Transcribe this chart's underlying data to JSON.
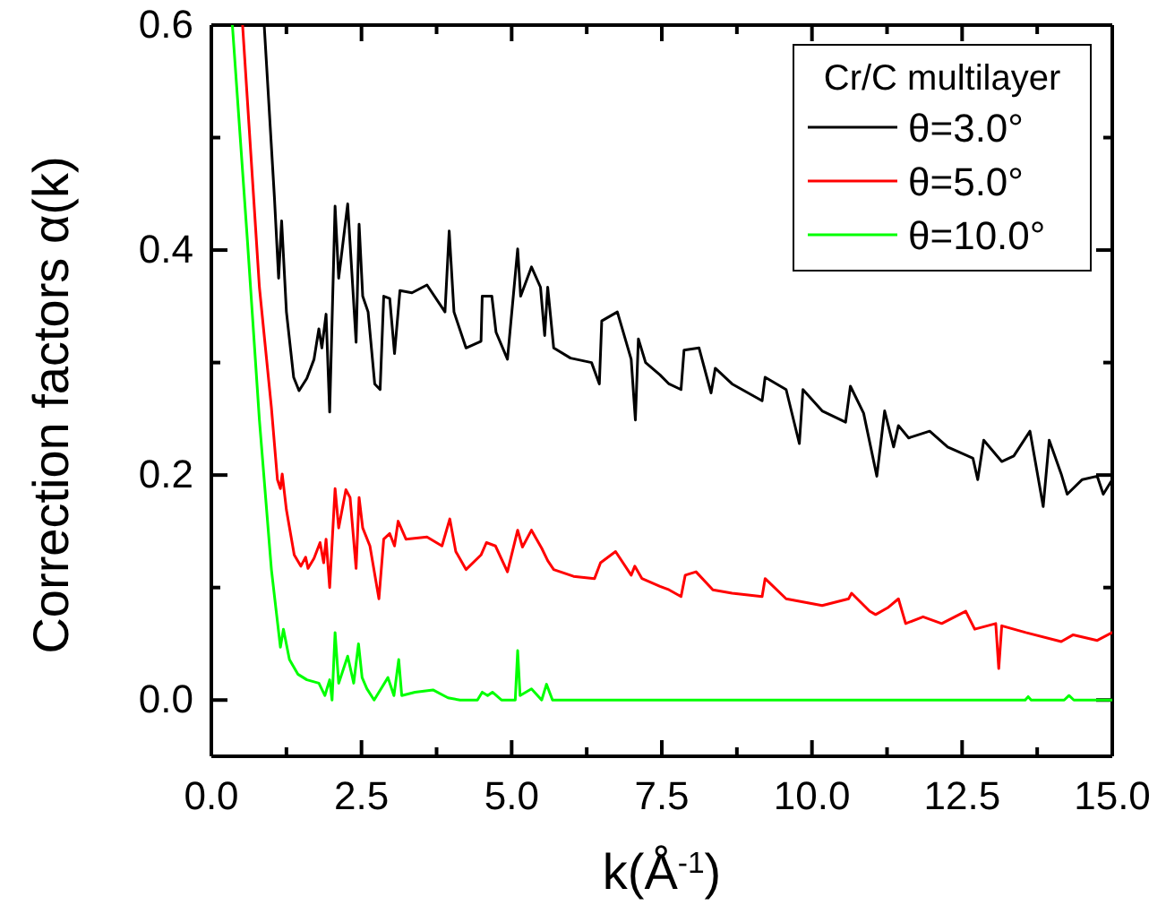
{
  "chart_data": {
    "type": "line",
    "xlabel": "k(Å$^{-1}$)",
    "ylabel": "Correction factors α(k)",
    "legend_title": "Cr/C multilayer",
    "legend": "top right",
    "grid": false,
    "line_style": "solid",
    "marker": "none",
    "xlim": [
      0,
      15
    ],
    "ylim": [
      -0.05,
      0.6
    ],
    "xticks": [
      {
        "value": 0,
        "label": "0.0"
      },
      {
        "value": 1.25,
        "label": null
      },
      {
        "value": 2.5,
        "label": "2.5"
      },
      {
        "value": 3.75,
        "label": null
      },
      {
        "value": 5,
        "label": "5.0"
      },
      {
        "value": 6.25,
        "label": null
      },
      {
        "value": 7.5,
        "label": "7.5"
      },
      {
        "value": 8.75,
        "label": null
      },
      {
        "value": 10,
        "label": "10.0"
      },
      {
        "value": 11.25,
        "label": null
      },
      {
        "value": 12.5,
        "label": "12.5"
      },
      {
        "value": 13.75,
        "label": null
      },
      {
        "value": 15,
        "label": "15.0"
      }
    ],
    "yticks": [
      {
        "value": 0,
        "label": "0.0"
      },
      {
        "value": 0.1,
        "label": null
      },
      {
        "value": 0.2,
        "label": "0.2"
      },
      {
        "value": 0.3,
        "label": null
      },
      {
        "value": 0.4,
        "label": "0.4"
      },
      {
        "value": 0.5,
        "label": null
      },
      {
        "value": 0.6,
        "label": "0.6"
      }
    ],
    "series": [
      {
        "name": "θ=3.0°",
        "color": "#000000",
        "x": [
          0.88,
          1.05,
          1.12,
          1.17,
          1.25,
          1.37,
          1.46,
          1.59,
          1.71,
          1.79,
          1.84,
          1.91,
          1.97,
          2.06,
          2.12,
          2.27,
          2.41,
          2.46,
          2.52,
          2.61,
          2.72,
          2.81,
          2.87,
          2.97,
          3.05,
          3.14,
          3.34,
          3.59,
          3.89,
          3.96,
          4.04,
          4.24,
          4.49,
          4.51,
          4.67,
          4.74,
          4.93,
          5.1,
          5.15,
          5.33,
          5.48,
          5.55,
          5.6,
          5.7,
          5.98,
          6.33,
          6.46,
          6.5,
          6.76,
          6.99,
          7.06,
          7.11,
          7.23,
          7.47,
          7.62,
          7.82,
          7.87,
          8.12,
          8.32,
          8.39,
          8.67,
          9.17,
          9.22,
          9.57,
          9.79,
          9.85,
          10.17,
          10.56,
          10.64,
          10.86,
          11.08,
          11.21,
          11.36,
          11.44,
          11.61,
          11.96,
          12.26,
          12.68,
          12.76,
          12.86,
          13.16,
          13.36,
          13.63,
          13.85,
          13.95,
          14.15,
          14.25,
          14.5,
          14.75,
          14.85,
          15
        ],
        "values": [
          0.6,
          0.447,
          0.375,
          0.426,
          0.345,
          0.287,
          0.275,
          0.286,
          0.303,
          0.33,
          0.313,
          0.343,
          0.256,
          0.439,
          0.375,
          0.441,
          0.318,
          0.423,
          0.359,
          0.345,
          0.281,
          0.276,
          0.359,
          0.357,
          0.308,
          0.364,
          0.362,
          0.369,
          0.345,
          0.417,
          0.345,
          0.313,
          0.319,
          0.359,
          0.359,
          0.327,
          0.303,
          0.401,
          0.359,
          0.385,
          0.367,
          0.324,
          0.367,
          0.313,
          0.304,
          0.3,
          0.281,
          0.337,
          0.345,
          0.303,
          0.249,
          0.321,
          0.3,
          0.289,
          0.281,
          0.276,
          0.311,
          0.313,
          0.273,
          0.295,
          0.281,
          0.266,
          0.287,
          0.276,
          0.228,
          0.276,
          0.257,
          0.247,
          0.279,
          0.255,
          0.199,
          0.257,
          0.225,
          0.244,
          0.233,
          0.239,
          0.225,
          0.215,
          0.196,
          0.231,
          0.212,
          0.217,
          0.239,
          0.172,
          0.231,
          0.201,
          0.183,
          0.196,
          0.199,
          0.183,
          0.196
        ]
      },
      {
        "name": "θ=5.0°",
        "color": "#ff0000",
        "x": [
          0.52,
          0.8,
          1.0,
          1.1,
          1.15,
          1.18,
          1.25,
          1.38,
          1.49,
          1.57,
          1.61,
          1.71,
          1.81,
          1.87,
          1.91,
          1.97,
          2.06,
          2.12,
          2.24,
          2.31,
          2.41,
          2.46,
          2.52,
          2.64,
          2.79,
          2.87,
          2.97,
          3.05,
          3.11,
          3.24,
          3.59,
          3.84,
          3.97,
          4.07,
          4.24,
          4.49,
          4.58,
          4.73,
          4.93,
          5.1,
          5.18,
          5.33,
          5.5,
          5.6,
          5.7,
          6.03,
          6.38,
          6.48,
          6.73,
          6.99,
          7.05,
          7.17,
          7.47,
          7.62,
          7.82,
          7.89,
          8.07,
          8.35,
          8.67,
          9.17,
          9.22,
          9.57,
          10.17,
          10.61,
          10.66,
          10.96,
          11.06,
          11.26,
          11.44,
          11.56,
          11.85,
          12.16,
          12.56,
          12.71,
          13.06,
          13.11,
          13.16,
          13.56,
          14.15,
          14.35,
          14.75,
          15
        ],
        "values": [
          0.6,
          0.367,
          0.26,
          0.196,
          0.188,
          0.201,
          0.169,
          0.129,
          0.119,
          0.127,
          0.117,
          0.126,
          0.14,
          0.122,
          0.143,
          0.1,
          0.188,
          0.153,
          0.187,
          0.18,
          0.117,
          0.18,
          0.153,
          0.137,
          0.09,
          0.143,
          0.148,
          0.137,
          0.159,
          0.143,
          0.145,
          0.137,
          0.161,
          0.132,
          0.116,
          0.129,
          0.14,
          0.137,
          0.114,
          0.151,
          0.136,
          0.151,
          0.135,
          0.124,
          0.116,
          0.11,
          0.108,
          0.122,
          0.132,
          0.111,
          0.119,
          0.108,
          0.101,
          0.098,
          0.092,
          0.111,
          0.114,
          0.098,
          0.095,
          0.092,
          0.108,
          0.09,
          0.084,
          0.09,
          0.095,
          0.079,
          0.076,
          0.082,
          0.09,
          0.068,
          0.074,
          0.068,
          0.079,
          0.063,
          0.068,
          0.028,
          0.066,
          0.06,
          0.052,
          0.058,
          0.053,
          0.06
        ]
      },
      {
        "name": "θ=10.0°",
        "color": "#00ff00",
        "x": [
          0.35,
          0.6,
          0.8,
          1.0,
          1.08,
          1.15,
          1.2,
          1.3,
          1.44,
          1.59,
          1.79,
          1.89,
          1.97,
          2.01,
          2.06,
          2.12,
          2.27,
          2.37,
          2.45,
          2.51,
          2.59,
          2.71,
          2.94,
          3.04,
          3.12,
          3.17,
          3.39,
          3.69,
          3.94,
          4.14,
          4.43,
          4.51,
          4.6,
          4.68,
          4.83,
          5.06,
          5.1,
          5.14,
          5.33,
          5.5,
          5.58,
          5.68,
          13.55,
          13.6,
          13.65,
          14.2,
          14.28,
          14.36,
          15
        ],
        "values": [
          0.6,
          0.409,
          0.249,
          0.116,
          0.079,
          0.047,
          0.063,
          0.036,
          0.023,
          0.018,
          0.015,
          0.004,
          0.018,
          0.0,
          0.06,
          0.015,
          0.039,
          0.015,
          0.05,
          0.02,
          0.01,
          0.0,
          0.02,
          0.004,
          0.036,
          0.004,
          0.007,
          0.009,
          0.002,
          0.0,
          0.0,
          0.007,
          0.004,
          0.007,
          0.0,
          0.0,
          0.044,
          0.004,
          0.01,
          0.0,
          0.014,
          0.0,
          0.0,
          0.003,
          0.0,
          0.0,
          0.004,
          0.0,
          0.0
        ]
      }
    ]
  }
}
